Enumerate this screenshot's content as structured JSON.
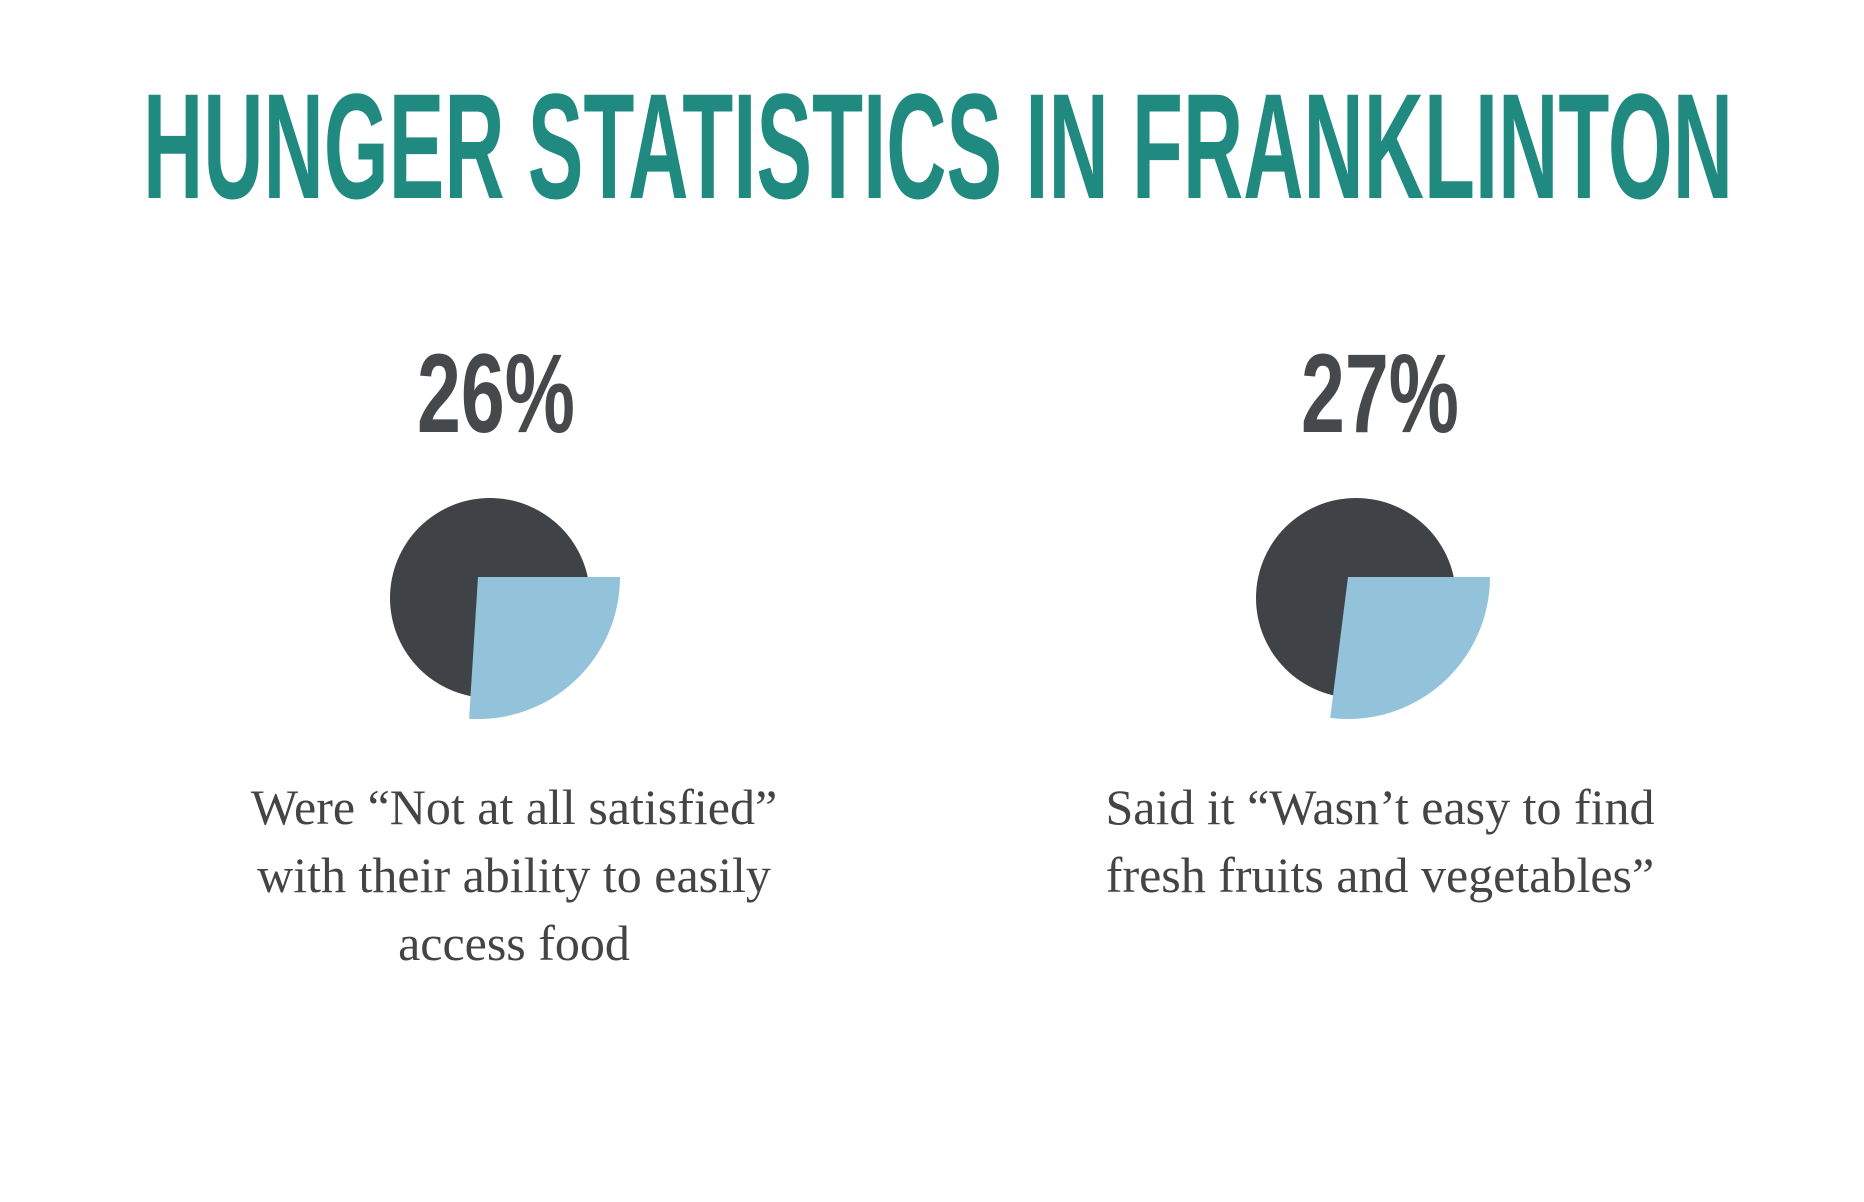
{
  "title": "HUNGER STATISTICS IN FRANKLINTON",
  "chart_data": [
    {
      "type": "pie",
      "values": [
        26
      ],
      "value_labels": [
        "26%"
      ],
      "color": "#92c3da",
      "caption": [
        "Were “Not at all satisfied”",
        "with their ability to easily",
        "access food"
      ]
    },
    {
      "type": "pie",
      "values": [
        27
      ],
      "value_labels": [
        "27%"
      ],
      "color": "#92c3da",
      "caption": [
        "Said it “Wasn’t easy to find",
        "fresh fruits and vegetables”"
      ]
    }
  ]
}
